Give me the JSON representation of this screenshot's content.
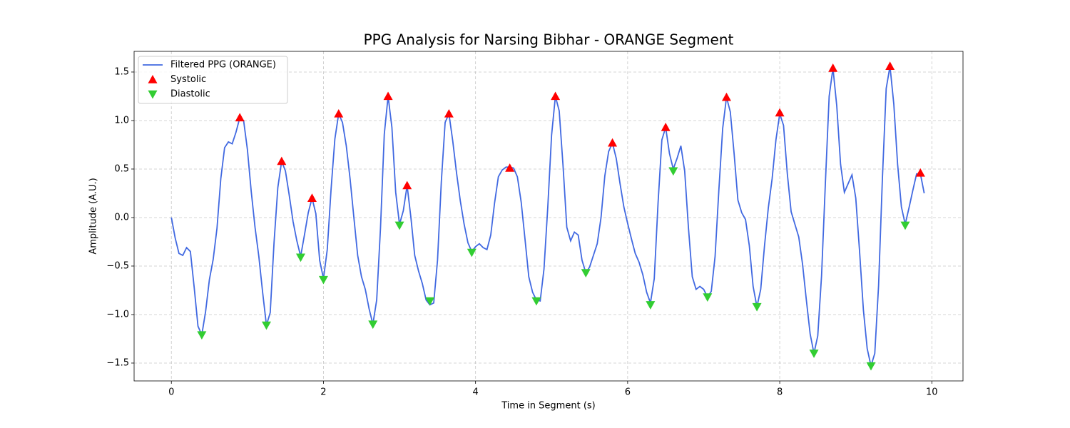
{
  "chart_data": {
    "type": "line",
    "title": "PPG Analysis for Narsing Bibhar - ORANGE Segment",
    "xlabel": "Time in Segment (s)",
    "ylabel": "Amplitude (A.U.)",
    "xlim": [
      -0.49,
      10.41
    ],
    "ylim": [
      -1.684,
      1.713
    ],
    "xticks": [
      0,
      2,
      4,
      6,
      8,
      10
    ],
    "yticks": [
      {
        "value": -1.5,
        "label": "−1.5"
      },
      {
        "value": -1.0,
        "label": "−1.0"
      },
      {
        "value": -0.5,
        "label": "−0.5"
      },
      {
        "value": 0,
        "label": "0.0"
      },
      0.5,
      {
        "value": 1.0,
        "label": "1.0"
      },
      1.5
    ],
    "grid": true,
    "legend": "upper left",
    "series": [
      {
        "name": "Filtered PPG (ORANGE)",
        "kind": "line",
        "color": "#4169e1",
        "x": [
          0,
          0.05,
          0.1,
          0.15,
          0.2,
          0.25,
          0.3,
          0.35,
          0.4,
          0.45,
          0.5,
          0.55,
          0.6,
          0.65,
          0.7,
          0.75,
          0.8,
          0.85,
          0.9,
          0.95,
          1.0,
          1.05,
          1.1,
          1.15,
          1.2,
          1.25,
          1.3,
          1.35,
          1.4,
          1.45,
          1.5,
          1.55,
          1.6,
          1.65,
          1.7,
          1.75,
          1.8,
          1.85,
          1.9,
          1.95,
          2.0,
          2.05,
          2.1,
          2.15,
          2.2,
          2.25,
          2.3,
          2.35,
          2.4,
          2.45,
          2.5,
          2.55,
          2.6,
          2.65,
          2.7,
          2.75,
          2.8,
          2.85,
          2.9,
          2.95,
          3.0,
          3.05,
          3.1,
          3.15,
          3.2,
          3.25,
          3.3,
          3.35,
          3.4,
          3.45,
          3.5,
          3.55,
          3.6,
          3.65,
          3.7,
          3.75,
          3.8,
          3.85,
          3.9,
          3.95,
          4.0,
          4.05,
          4.1,
          4.15,
          4.2,
          4.25,
          4.3,
          4.35,
          4.4,
          4.45,
          4.5,
          4.55,
          4.6,
          4.65,
          4.7,
          4.75,
          4.8,
          4.85,
          4.9,
          4.95,
          5.0,
          5.05,
          5.1,
          5.15,
          5.2,
          5.25,
          5.3,
          5.35,
          5.4,
          5.45,
          5.5,
          5.55,
          5.6,
          5.65,
          5.7,
          5.75,
          5.8,
          5.85,
          5.9,
          5.95,
          6.0,
          6.05,
          6.1,
          6.15,
          6.2,
          6.25,
          6.3,
          6.35,
          6.4,
          6.45,
          6.5,
          6.55,
          6.6,
          6.65,
          6.7,
          6.75,
          6.8,
          6.85,
          6.9,
          6.95,
          7.0,
          7.05,
          7.1,
          7.15,
          7.2,
          7.25,
          7.3,
          7.35,
          7.4,
          7.45,
          7.5,
          7.55,
          7.6,
          7.65,
          7.7,
          7.75,
          7.8,
          7.85,
          7.9,
          7.95,
          8.0,
          8.05,
          8.1,
          8.15,
          8.2,
          8.25,
          8.3,
          8.35,
          8.4,
          8.45,
          8.5,
          8.55,
          8.6,
          8.65,
          8.7,
          8.75,
          8.8,
          8.85,
          8.9,
          8.95,
          9.0,
          9.05,
          9.1,
          9.15,
          9.2,
          9.25,
          9.3,
          9.35,
          9.4,
          9.45,
          9.5,
          9.55,
          9.6,
          9.65,
          9.7,
          9.75,
          9.8,
          9.85,
          9.9
        ],
        "values": [
          0,
          -0.21,
          -0.37,
          -0.39,
          -0.31,
          -0.35,
          -0.72,
          -1.12,
          -1.21,
          -0.97,
          -0.64,
          -0.43,
          -0.11,
          0.4,
          0.72,
          0.78,
          0.76,
          0.88,
          1.03,
          1.0,
          0.7,
          0.27,
          -0.1,
          -0.4,
          -0.77,
          -1.11,
          -0.98,
          -0.26,
          0.31,
          0.58,
          0.48,
          0.23,
          -0.04,
          -0.24,
          -0.4,
          -0.18,
          0.05,
          0.2,
          0.04,
          -0.44,
          -0.63,
          -0.33,
          0.29,
          0.81,
          1.07,
          0.98,
          0.74,
          0.4,
          0,
          -0.39,
          -0.61,
          -0.74,
          -0.94,
          -1.1,
          -0.85,
          -0.11,
          0.86,
          1.25,
          0.93,
          0.26,
          -0.07,
          0.07,
          0.33,
          0,
          -0.39,
          -0.55,
          -0.68,
          -0.85,
          -0.9,
          -0.88,
          -0.44,
          0.37,
          0.98,
          1.07,
          0.79,
          0.46,
          0.17,
          -0.07,
          -0.26,
          -0.35,
          -0.3,
          -0.27,
          -0.31,
          -0.33,
          -0.18,
          0.15,
          0.42,
          0.49,
          0.52,
          0.52,
          0.51,
          0.42,
          0.16,
          -0.22,
          -0.61,
          -0.77,
          -0.85,
          -0.86,
          -0.53,
          0.11,
          0.85,
          1.25,
          1.1,
          0.54,
          -0.1,
          -0.24,
          -0.15,
          -0.18,
          -0.44,
          -0.57,
          -0.51,
          -0.39,
          -0.27,
          0,
          0.43,
          0.68,
          0.77,
          0.61,
          0.35,
          0.11,
          -0.06,
          -0.22,
          -0.37,
          -0.46,
          -0.59,
          -0.77,
          -0.88,
          -0.63,
          0.15,
          0.8,
          0.93,
          0.66,
          0.5,
          0.61,
          0.74,
          0.48,
          -0.11,
          -0.61,
          -0.74,
          -0.71,
          -0.74,
          -0.82,
          -0.76,
          -0.4,
          0.29,
          0.92,
          1.24,
          1.09,
          0.66,
          0.18,
          0.05,
          -0.02,
          -0.29,
          -0.71,
          -0.92,
          -0.74,
          -0.29,
          0.1,
          0.4,
          0.8,
          1.07,
          0.95,
          0.45,
          0.06,
          -0.07,
          -0.2,
          -0.48,
          -0.85,
          -1.2,
          -1.4,
          -1.22,
          -0.6,
          0.35,
          1.25,
          1.54,
          1.15,
          0.55,
          0.26,
          0.35,
          0.44,
          0.2,
          -0.35,
          -0.95,
          -1.35,
          -1.53,
          -1.4,
          -0.7,
          0.4,
          1.33,
          1.56,
          1.17,
          0.55,
          0.11,
          -0.07,
          0.1,
          0.28,
          0.45,
          0.45,
          0.25
        ]
      },
      {
        "name": "Systolic",
        "kind": "up",
        "color": "#ff0000",
        "x": [
          0.9,
          1.45,
          1.85,
          2.2,
          2.85,
          3.1,
          3.65,
          4.45,
          5.05,
          5.8,
          6.5,
          7.3,
          8.0,
          8.7,
          9.45,
          9.85
        ],
        "values": [
          1.03,
          0.58,
          0.2,
          1.07,
          1.25,
          0.33,
          1.07,
          0.51,
          1.25,
          0.77,
          0.93,
          1.24,
          1.08,
          1.54,
          1.56,
          0.46
        ]
      },
      {
        "name": "Diastolic",
        "kind": "down",
        "color": "#32cd32",
        "x": [
          0.4,
          1.25,
          1.7,
          2.0,
          2.65,
          3.0,
          3.4,
          3.95,
          4.8,
          5.45,
          6.3,
          6.6,
          7.05,
          7.7,
          8.45,
          9.2,
          9.65
        ],
        "values": [
          -1.21,
          -1.11,
          -0.41,
          -0.64,
          -1.1,
          -0.08,
          -0.86,
          -0.36,
          -0.86,
          -0.57,
          -0.9,
          0.48,
          -0.82,
          -0.92,
          -1.4,
          -1.53,
          -0.08
        ]
      }
    ]
  }
}
